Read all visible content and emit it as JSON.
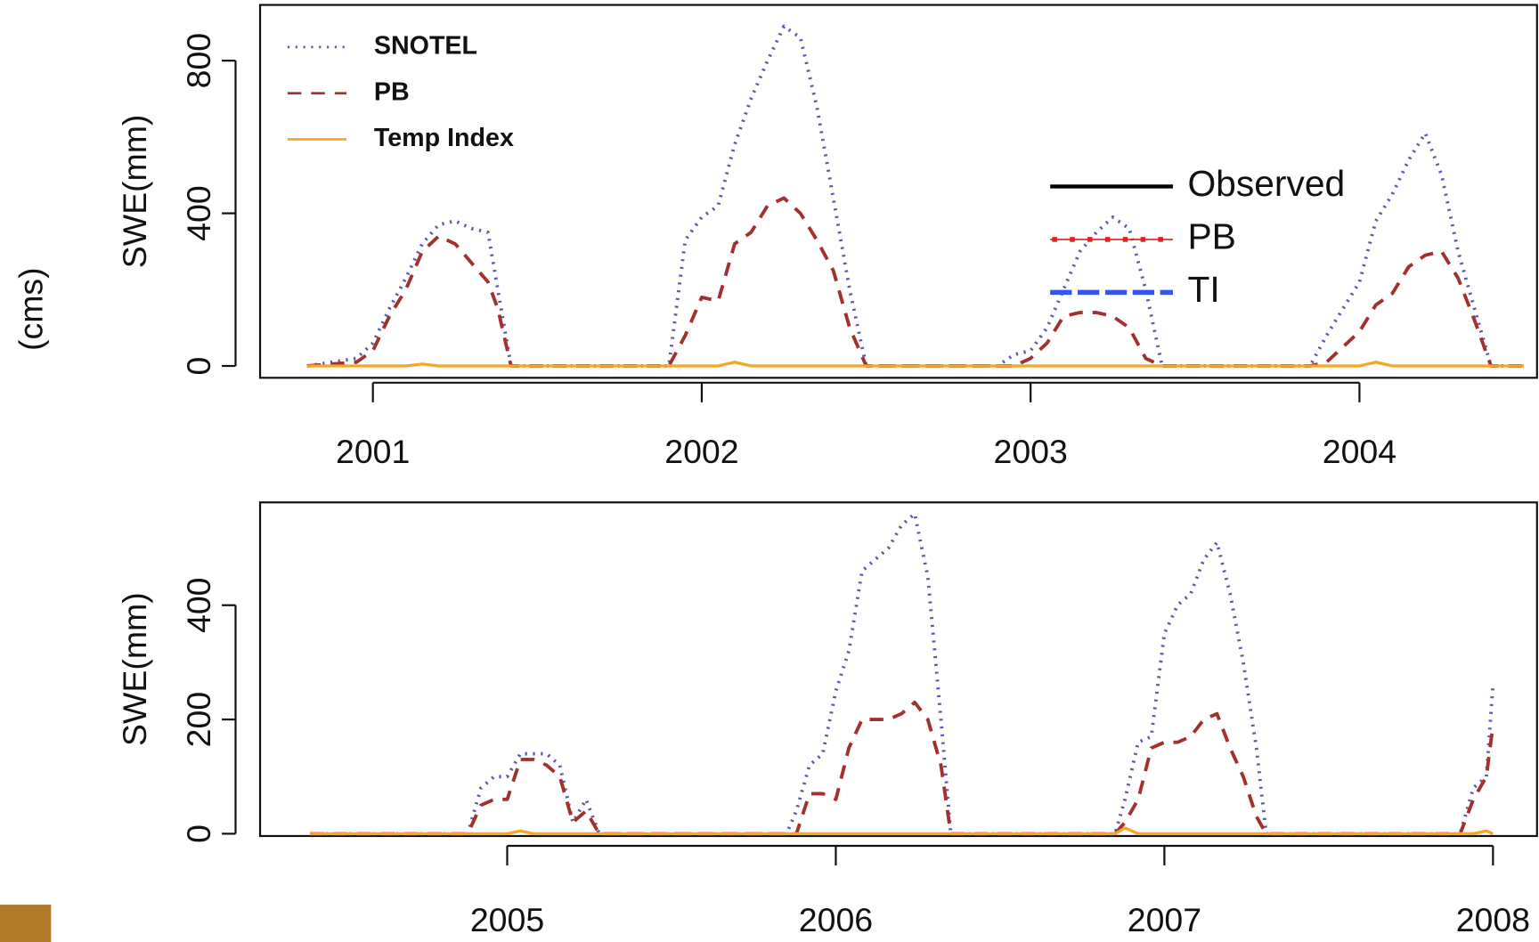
{
  "side_label": "(cms)",
  "overlay_legend": [
    {
      "label": "Observed",
      "color": "#000000",
      "linestyle": "solid"
    },
    {
      "label": "PB",
      "color": "#e0201a",
      "linestyle": "dotted-marker"
    },
    {
      "label": "TI",
      "color": "#3355ee",
      "linestyle": "dashed"
    }
  ],
  "chart_data": [
    {
      "type": "line",
      "ylabel": "SWE(mm)",
      "legend": "top-left",
      "xlim": [
        2000.657,
        2004.54
      ],
      "xticks": [
        2001,
        2002,
        2003,
        2004
      ],
      "ylim": [
        -31,
        946
      ],
      "yticks": [
        0,
        400,
        800
      ],
      "x": [
        2000.8,
        2000.95,
        2001.0,
        2001.05,
        2001.1,
        2001.15,
        2001.2,
        2001.25,
        2001.3,
        2001.35,
        2001.38,
        2001.42,
        2001.9,
        2001.95,
        2002.0,
        2002.05,
        2002.1,
        2002.15,
        2002.2,
        2002.25,
        2002.3,
        2002.35,
        2002.4,
        2002.45,
        2002.5,
        2002.9,
        2002.95,
        2003.0,
        2003.05,
        2003.1,
        2003.15,
        2003.2,
        2003.25,
        2003.3,
        2003.35,
        2003.4,
        2003.85,
        2003.9,
        2003.95,
        2004.0,
        2004.05,
        2004.1,
        2004.15,
        2004.2,
        2004.25,
        2004.3,
        2004.35,
        2004.4,
        2004.5
      ],
      "series": [
        {
          "name": "SNOTEL",
          "color": "#5a5aaa",
          "linestyle": "dotted",
          "values": [
            0,
            20,
            60,
            150,
            230,
            320,
            370,
            380,
            360,
            350,
            200,
            0,
            0,
            330,
            390,
            420,
            580,
            700,
            800,
            890,
            860,
            680,
            440,
            200,
            0,
            0,
            30,
            40,
            100,
            200,
            300,
            350,
            390,
            360,
            200,
            0,
            0,
            80,
            150,
            220,
            380,
            450,
            540,
            610,
            500,
            300,
            150,
            0,
            0
          ]
        },
        {
          "name": "PB",
          "color": "#a3302e",
          "linestyle": "dashed",
          "values": [
            0,
            10,
            40,
            130,
            200,
            300,
            340,
            320,
            270,
            220,
            150,
            0,
            0,
            80,
            180,
            170,
            320,
            350,
            420,
            440,
            400,
            330,
            250,
            100,
            0,
            0,
            0,
            20,
            60,
            130,
            140,
            140,
            130,
            100,
            20,
            0,
            0,
            10,
            50,
            90,
            160,
            190,
            260,
            290,
            300,
            230,
            120,
            0,
            0
          ]
        },
        {
          "name": "Temp Index",
          "color": "#f6a623",
          "linestyle": "solid",
          "values": [
            0,
            0,
            0,
            0,
            0,
            5,
            0,
            0,
            0,
            0,
            0,
            0,
            0,
            0,
            0,
            0,
            10,
            0,
            0,
            0,
            0,
            0,
            0,
            0,
            0,
            0,
            0,
            0,
            0,
            0,
            0,
            0,
            0,
            0,
            0,
            0,
            0,
            0,
            0,
            0,
            10,
            0,
            0,
            0,
            0,
            0,
            0,
            0,
            0
          ]
        }
      ]
    },
    {
      "type": "line",
      "ylabel": "SWE(mm)",
      "xlim": [
        2004.248,
        2008.134
      ],
      "xticks": [
        2005,
        2006,
        2007,
        2008
      ],
      "ylim": [
        -4,
        580
      ],
      "yticks": [
        0,
        200,
        400
      ],
      "x": [
        2004.4,
        2004.88,
        2004.92,
        2004.96,
        2005.0,
        2005.04,
        2005.08,
        2005.12,
        2005.16,
        2005.2,
        2005.24,
        2005.28,
        2005.85,
        2005.88,
        2005.92,
        2005.96,
        2006.0,
        2006.04,
        2006.08,
        2006.12,
        2006.16,
        2006.2,
        2006.24,
        2006.28,
        2006.32,
        2006.35,
        2006.85,
        2006.88,
        2006.92,
        2006.96,
        2007.0,
        2007.04,
        2007.08,
        2007.12,
        2007.16,
        2007.2,
        2007.24,
        2007.28,
        2007.31,
        2007.87,
        2007.9,
        2007.94,
        2007.98,
        2008.0
      ],
      "series": [
        {
          "name": "SNOTEL",
          "color": "#5a5aaa",
          "linestyle": "dotted",
          "values": [
            0,
            0,
            80,
            100,
            100,
            140,
            140,
            140,
            120,
            20,
            60,
            0,
            0,
            40,
            120,
            140,
            250,
            320,
            460,
            480,
            500,
            540,
            560,
            450,
            200,
            0,
            0,
            60,
            160,
            170,
            350,
            400,
            420,
            480,
            510,
            420,
            300,
            150,
            0,
            0,
            0,
            80,
            100,
            260
          ]
        },
        {
          "name": "PB",
          "color": "#a3302e",
          "linestyle": "dashed",
          "values": [
            0,
            0,
            50,
            60,
            60,
            130,
            130,
            120,
            100,
            20,
            40,
            0,
            0,
            0,
            70,
            70,
            60,
            150,
            200,
            200,
            200,
            210,
            230,
            200,
            120,
            0,
            0,
            20,
            60,
            150,
            160,
            160,
            170,
            200,
            210,
            150,
            100,
            30,
            0,
            0,
            0,
            60,
            100,
            190
          ]
        },
        {
          "name": "Temp Index",
          "color": "#f6a623",
          "linestyle": "solid",
          "values": [
            0,
            0,
            0,
            0,
            0,
            5,
            0,
            0,
            0,
            0,
            0,
            0,
            0,
            0,
            0,
            0,
            0,
            0,
            0,
            0,
            0,
            0,
            0,
            0,
            0,
            0,
            0,
            10,
            0,
            0,
            0,
            0,
            0,
            0,
            0,
            0,
            0,
            0,
            0,
            0,
            0,
            0,
            5,
            0
          ]
        }
      ]
    }
  ]
}
